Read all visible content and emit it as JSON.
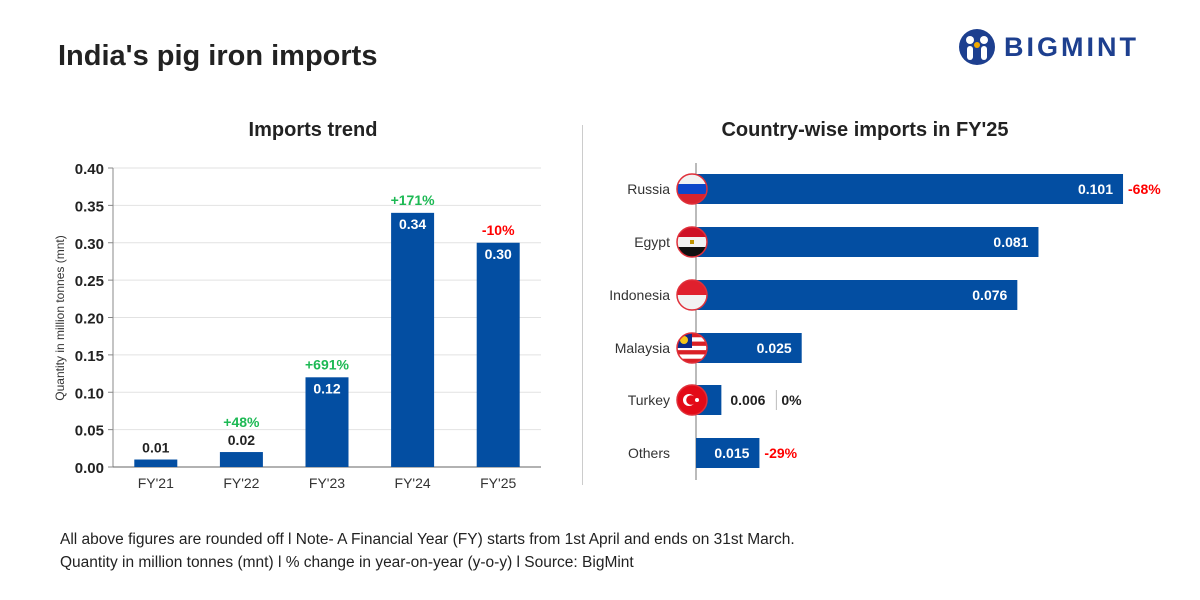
{
  "title": "India's pig iron imports",
  "logo": {
    "text": "BIGMINT",
    "color": "#1d3f8f"
  },
  "footer": {
    "line1": "All above figures are rounded off  l  Note- A Financial Year (FY) starts from 1st April and ends on 31st March.",
    "line2": "Quantity in million tonnes (mnt)  l  % change in year-on-year (y-o-y)  l  Source: BigMint"
  },
  "chart_data": [
    {
      "type": "bar",
      "title": "Imports trend",
      "xlabel": "",
      "ylabel": "Quantity in million tonnes (mnt)",
      "ylim": [
        0,
        0.4
      ],
      "yticks": [
        "0.00",
        "0.05",
        "0.10",
        "0.15",
        "0.20",
        "0.25",
        "0.30",
        "0.35",
        "0.40"
      ],
      "grid": true,
      "categories": [
        "FY'21",
        "FY'22",
        "FY'23",
        "FY'24",
        "FY'25"
      ],
      "values": [
        0.01,
        0.02,
        0.12,
        0.34,
        0.3
      ],
      "value_labels": [
        "0.01",
        "0.02",
        "0.12",
        "0.34",
        "0.30"
      ],
      "change_labels": [
        "",
        "+48%",
        "+691%",
        "+171%",
        "-10%"
      ],
      "bar_color": "#034ea2",
      "positive_color": "#1db954",
      "negative_color": "#ff0000"
    },
    {
      "type": "bar",
      "orientation": "horizontal",
      "title": "Country-wise imports in FY'25",
      "categories": [
        "Russia",
        "Egypt",
        "Indonesia",
        "Malaysia",
        "Turkey",
        "Others"
      ],
      "values": [
        0.101,
        0.081,
        0.076,
        0.025,
        0.006,
        0.015
      ],
      "value_labels": [
        "0.101",
        "0.081",
        "0.076",
        "0.025",
        "0.006",
        "0.015"
      ],
      "change_labels": [
        "-68%",
        "",
        "",
        "",
        "0%",
        "-29%"
      ],
      "flags": [
        "russia-flag",
        "egypt-flag",
        "indonesia-flag",
        "malaysia-flag",
        "turkey-flag",
        ""
      ],
      "bar_color": "#034ea2"
    }
  ]
}
